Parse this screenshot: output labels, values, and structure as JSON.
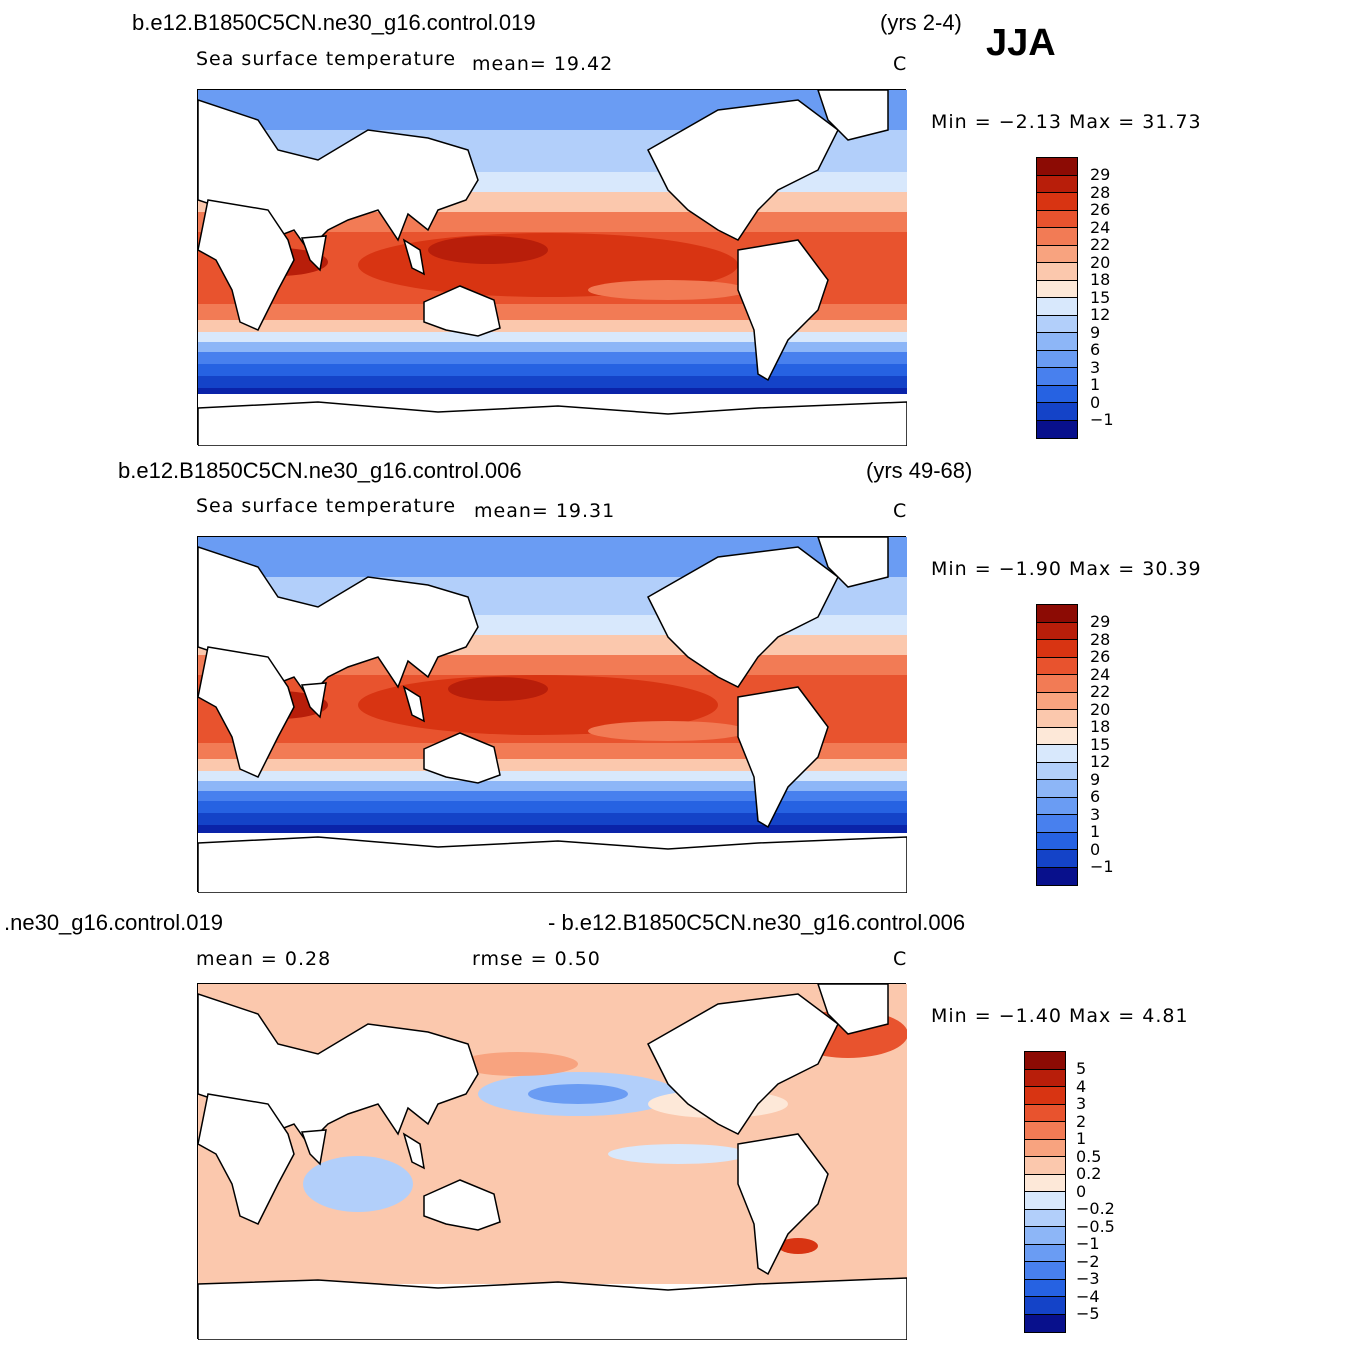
{
  "season": "JJA",
  "colors": {
    "cold_scale": [
      "#08108c",
      "#0a23a9",
      "#1443c8",
      "#2662e2",
      "#4880ee",
      "#6a9cf3",
      "#8db6f7",
      "#b2cffa",
      "#d8e8fc"
    ],
    "warm_scale": [
      "#fde8d8",
      "#fbc8ad",
      "#f8a37f",
      "#f27b55",
      "#e8532e",
      "#d83412",
      "#b81e0a",
      "#8c0b04"
    ]
  },
  "panels": [
    {
      "case": "b.e12.B1850C5CN.ne30_g16.control.019",
      "years": "(yrs 2-4)",
      "variable": "Sea surface temperature",
      "stat1": "mean=  19.42",
      "stat2": "",
      "units": "C",
      "minmax": "Min =   −2.13  Max =   31.73",
      "levels": [
        "29",
        "28",
        "26",
        "24",
        "22",
        "20",
        "18",
        "15",
        "12",
        "9",
        "6",
        "3",
        "1",
        "0",
        "−1"
      ]
    },
    {
      "case": "b.e12.B1850C5CN.ne30_g16.control.006",
      "years": "(yrs 49-68)",
      "variable": "Sea surface temperature",
      "stat1": "mean=  19.31",
      "stat2": "",
      "units": "C",
      "minmax": "Min =   −1.90  Max =   30.39",
      "levels": [
        "29",
        "28",
        "26",
        "24",
        "22",
        "20",
        "18",
        "15",
        "12",
        "9",
        "6",
        "3",
        "1",
        "0",
        "−1"
      ]
    },
    {
      "case": ".ne30_g16.control.019",
      "years": "- b.e12.B1850C5CN.ne30_g16.control.006",
      "variable": "",
      "stat1": "mean =    0.28",
      "stat2": "rmse =    0.50",
      "units": "C",
      "minmax": "Min =   −1.40  Max =    4.81",
      "levels": [
        "5",
        "4",
        "3",
        "2",
        "1",
        "0.5",
        "0.2",
        "0",
        "−0.2",
        "−0.5",
        "−1",
        "−2",
        "−3",
        "−4",
        "−5"
      ]
    }
  ]
}
